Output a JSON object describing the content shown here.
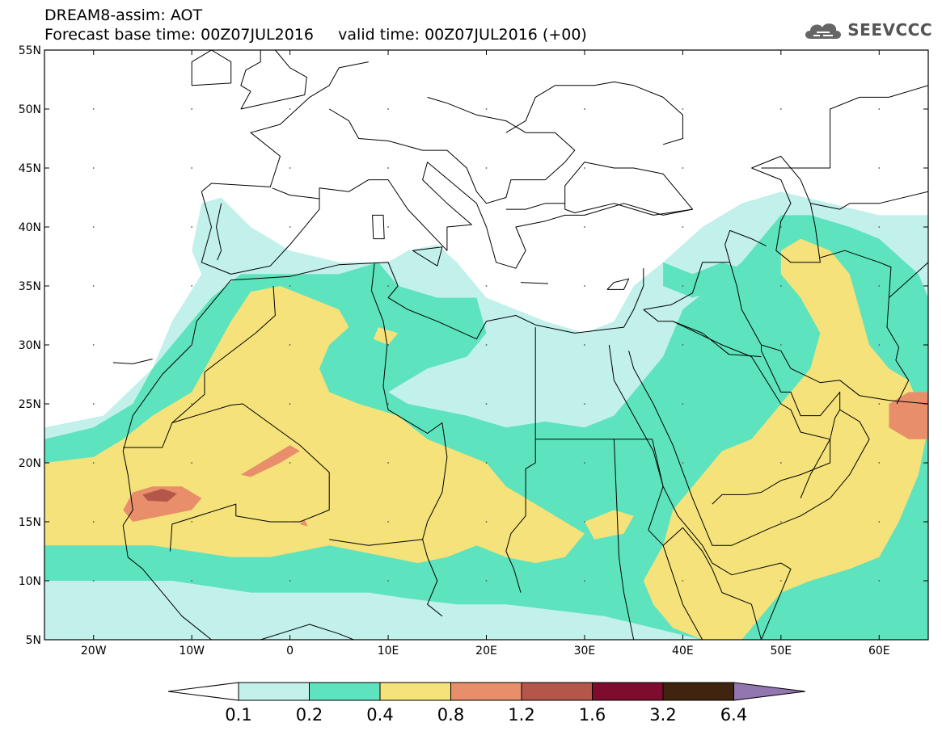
{
  "header": {
    "title_line1": "DREAM8-assim: AOT",
    "title_line2": "Forecast base time: 00Z07JUL2016     valid time: 00Z07JUL2016 (+00)",
    "logo_text": "SEEVCCC"
  },
  "map": {
    "lon_range": [
      -25,
      65
    ],
    "lat_range": [
      5,
      55
    ],
    "lat_ticks": [
      {
        "value": 55,
        "label": "55N"
      },
      {
        "value": 50,
        "label": "50N"
      },
      {
        "value": 45,
        "label": "45N"
      },
      {
        "value": 40,
        "label": "40N"
      },
      {
        "value": 35,
        "label": "35N"
      },
      {
        "value": 30,
        "label": "30N"
      },
      {
        "value": 25,
        "label": "25N"
      },
      {
        "value": 20,
        "label": "20N"
      },
      {
        "value": 15,
        "label": "15N"
      },
      {
        "value": 10,
        "label": "10N"
      },
      {
        "value": 5,
        "label": "5N"
      }
    ],
    "lon_ticks": [
      {
        "value": -20,
        "label": "20W"
      },
      {
        "value": -10,
        "label": "10W"
      },
      {
        "value": 0,
        "label": "0"
      },
      {
        "value": 10,
        "label": "10E"
      },
      {
        "value": 20,
        "label": "20E"
      },
      {
        "value": 30,
        "label": "30E"
      },
      {
        "value": 40,
        "label": "40E"
      },
      {
        "value": 50,
        "label": "50E"
      },
      {
        "value": 60,
        "label": "60E"
      }
    ],
    "colors": {
      "c01": "#c2f0ea",
      "c02": "#5de3bd",
      "c04": "#f5e27a",
      "c08": "#e88e6a",
      "c12": "#b5564b",
      "c16": "#7d0c2e",
      "c32": "#40240f",
      "c64": "#9276b0",
      "border": "#000000"
    }
  },
  "colorbar": {
    "labels": [
      "0.1",
      "0.2",
      "0.4",
      "0.8",
      "1.2",
      "1.6",
      "3.2",
      "6.4"
    ],
    "colors": [
      "#ffffff",
      "#c2f0ea",
      "#5de3bd",
      "#f5e27a",
      "#e88e6a",
      "#b5564b",
      "#7d0c2e",
      "#40240f",
      "#9276b0"
    ]
  }
}
